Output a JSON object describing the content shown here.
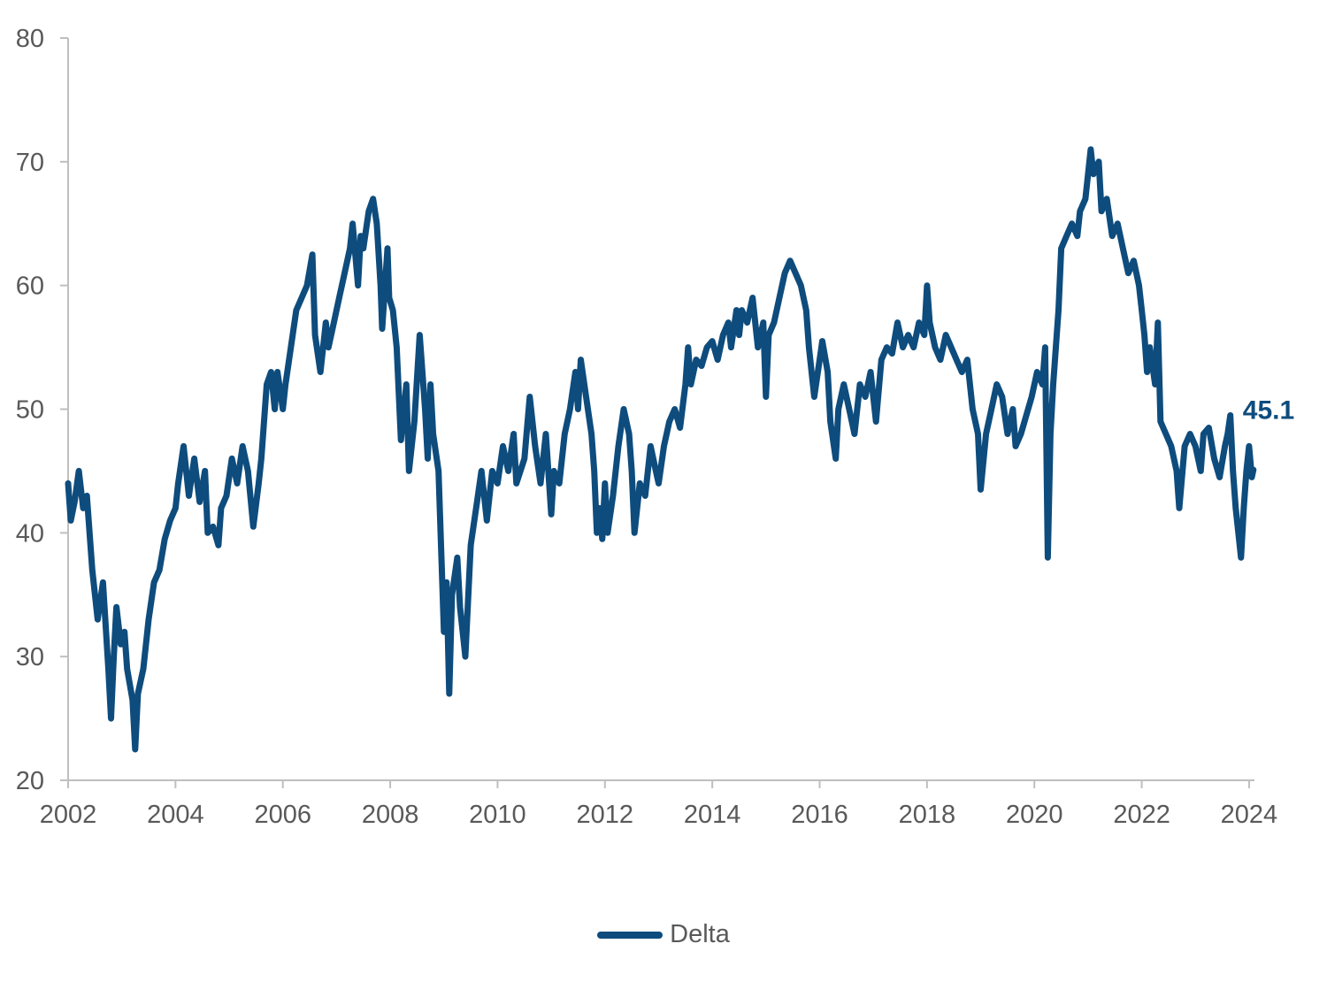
{
  "chart_data": {
    "type": "line",
    "title": "",
    "xlabel": "",
    "ylabel": "",
    "xlim": [
      2002,
      2024.1
    ],
    "ylim": [
      20,
      80
    ],
    "yticks": [
      "20",
      "30",
      "40",
      "50",
      "60",
      "70",
      "80"
    ],
    "xticks": [
      "2002",
      "2004",
      "2006",
      "2008",
      "2010",
      "2012",
      "2014",
      "2016",
      "2018",
      "2020",
      "2022",
      "2024"
    ],
    "grid": false,
    "legend_position": "bottom",
    "end_label": "45.1",
    "series": [
      {
        "name": "Delta",
        "color": "#0e4c7d",
        "points": [
          [
            2002.0,
            44
          ],
          [
            2002.05,
            41
          ],
          [
            2002.12,
            42.5
          ],
          [
            2002.2,
            45
          ],
          [
            2002.28,
            42
          ],
          [
            2002.35,
            43
          ],
          [
            2002.45,
            37
          ],
          [
            2002.55,
            33
          ],
          [
            2002.65,
            36
          ],
          [
            2002.75,
            29
          ],
          [
            2002.8,
            25
          ],
          [
            2002.85,
            30
          ],
          [
            2002.9,
            34
          ],
          [
            2002.98,
            31
          ],
          [
            2003.05,
            32
          ],
          [
            2003.1,
            29
          ],
          [
            2003.2,
            26.5
          ],
          [
            2003.25,
            22.5
          ],
          [
            2003.3,
            27
          ],
          [
            2003.4,
            29
          ],
          [
            2003.5,
            33
          ],
          [
            2003.6,
            36
          ],
          [
            2003.7,
            37
          ],
          [
            2003.8,
            39.5
          ],
          [
            2003.9,
            41
          ],
          [
            2004.0,
            42
          ],
          [
            2004.05,
            44
          ],
          [
            2004.15,
            47
          ],
          [
            2004.25,
            43
          ],
          [
            2004.35,
            46
          ],
          [
            2004.45,
            42.5
          ],
          [
            2004.55,
            45
          ],
          [
            2004.6,
            40
          ],
          [
            2004.7,
            40.5
          ],
          [
            2004.8,
            39
          ],
          [
            2004.85,
            42
          ],
          [
            2004.95,
            43
          ],
          [
            2005.05,
            46
          ],
          [
            2005.15,
            44
          ],
          [
            2005.25,
            47
          ],
          [
            2005.35,
            45
          ],
          [
            2005.45,
            40.5
          ],
          [
            2005.55,
            44
          ],
          [
            2005.6,
            46
          ],
          [
            2005.7,
            52
          ],
          [
            2005.78,
            53
          ],
          [
            2005.85,
            50
          ],
          [
            2005.9,
            53
          ],
          [
            2006.0,
            50
          ],
          [
            2006.05,
            52
          ],
          [
            2006.15,
            55
          ],
          [
            2006.25,
            58
          ],
          [
            2006.35,
            59
          ],
          [
            2006.45,
            60
          ],
          [
            2006.55,
            62.5
          ],
          [
            2006.6,
            56
          ],
          [
            2006.7,
            53
          ],
          [
            2006.8,
            57
          ],
          [
            2006.85,
            55
          ],
          [
            2006.95,
            57
          ],
          [
            2007.05,
            59
          ],
          [
            2007.15,
            61
          ],
          [
            2007.25,
            63
          ],
          [
            2007.3,
            65
          ],
          [
            2007.4,
            60
          ],
          [
            2007.45,
            64
          ],
          [
            2007.5,
            63
          ],
          [
            2007.6,
            66
          ],
          [
            2007.68,
            67
          ],
          [
            2007.75,
            65
          ],
          [
            2007.82,
            60
          ],
          [
            2007.85,
            56.5
          ],
          [
            2007.95,
            63
          ],
          [
            2007.98,
            59
          ],
          [
            2008.05,
            58
          ],
          [
            2008.12,
            55
          ],
          [
            2008.2,
            47.5
          ],
          [
            2008.3,
            52
          ],
          [
            2008.35,
            45
          ],
          [
            2008.45,
            49
          ],
          [
            2008.55,
            56
          ],
          [
            2008.65,
            50
          ],
          [
            2008.7,
            46
          ],
          [
            2008.75,
            52
          ],
          [
            2008.8,
            48
          ],
          [
            2008.9,
            45
          ],
          [
            2009.0,
            32
          ],
          [
            2009.05,
            36
          ],
          [
            2009.1,
            27
          ],
          [
            2009.15,
            35
          ],
          [
            2009.25,
            38
          ],
          [
            2009.3,
            34
          ],
          [
            2009.4,
            30
          ],
          [
            2009.5,
            39
          ],
          [
            2009.6,
            42
          ],
          [
            2009.7,
            45
          ],
          [
            2009.8,
            41
          ],
          [
            2009.9,
            45
          ],
          [
            2010.0,
            44
          ],
          [
            2010.1,
            47
          ],
          [
            2010.2,
            45
          ],
          [
            2010.3,
            48
          ],
          [
            2010.35,
            44
          ],
          [
            2010.5,
            46
          ],
          [
            2010.6,
            51
          ],
          [
            2010.7,
            47
          ],
          [
            2010.8,
            44
          ],
          [
            2010.9,
            48
          ],
          [
            2011.0,
            41.5
          ],
          [
            2011.05,
            45
          ],
          [
            2011.15,
            44
          ],
          [
            2011.25,
            48
          ],
          [
            2011.35,
            50
          ],
          [
            2011.45,
            53
          ],
          [
            2011.5,
            50
          ],
          [
            2011.55,
            54
          ],
          [
            2011.65,
            51
          ],
          [
            2011.75,
            48
          ],
          [
            2011.8,
            45
          ],
          [
            2011.85,
            40
          ],
          [
            2011.9,
            42
          ],
          [
            2011.95,
            39.5
          ],
          [
            2012.0,
            44
          ],
          [
            2012.05,
            40
          ],
          [
            2012.15,
            43
          ],
          [
            2012.25,
            47
          ],
          [
            2012.35,
            50
          ],
          [
            2012.45,
            48
          ],
          [
            2012.5,
            45
          ],
          [
            2012.55,
            40
          ],
          [
            2012.65,
            44
          ],
          [
            2012.75,
            43
          ],
          [
            2012.85,
            47
          ],
          [
            2012.95,
            45
          ],
          [
            2013.0,
            44
          ],
          [
            2013.1,
            47
          ],
          [
            2013.2,
            49
          ],
          [
            2013.3,
            50
          ],
          [
            2013.4,
            48.5
          ],
          [
            2013.5,
            52
          ],
          [
            2013.55,
            55
          ],
          [
            2013.6,
            52
          ],
          [
            2013.7,
            54
          ],
          [
            2013.8,
            53.5
          ],
          [
            2013.9,
            55
          ],
          [
            2014.0,
            55.5
          ],
          [
            2014.1,
            54
          ],
          [
            2014.2,
            56
          ],
          [
            2014.3,
            57
          ],
          [
            2014.35,
            55
          ],
          [
            2014.45,
            58
          ],
          [
            2014.5,
            56
          ],
          [
            2014.55,
            58
          ],
          [
            2014.65,
            57
          ],
          [
            2014.75,
            59
          ],
          [
            2014.85,
            55
          ],
          [
            2014.95,
            57
          ],
          [
            2015.0,
            51
          ],
          [
            2015.05,
            56
          ],
          [
            2015.15,
            57
          ],
          [
            2015.25,
            59
          ],
          [
            2015.35,
            61
          ],
          [
            2015.45,
            62
          ],
          [
            2015.55,
            61
          ],
          [
            2015.65,
            60
          ],
          [
            2015.75,
            58
          ],
          [
            2015.8,
            55
          ],
          [
            2015.9,
            51
          ],
          [
            2016.0,
            54
          ],
          [
            2016.05,
            55.5
          ],
          [
            2016.15,
            53
          ],
          [
            2016.2,
            49
          ],
          [
            2016.3,
            46
          ],
          [
            2016.35,
            50
          ],
          [
            2016.45,
            52
          ],
          [
            2016.55,
            50
          ],
          [
            2016.65,
            48
          ],
          [
            2016.75,
            52
          ],
          [
            2016.85,
            51
          ],
          [
            2016.95,
            53
          ],
          [
            2017.05,
            49
          ],
          [
            2017.15,
            54
          ],
          [
            2017.25,
            55
          ],
          [
            2017.35,
            54.5
          ],
          [
            2017.45,
            57
          ],
          [
            2017.55,
            55
          ],
          [
            2017.65,
            56
          ],
          [
            2017.75,
            55
          ],
          [
            2017.85,
            57
          ],
          [
            2017.95,
            56
          ],
          [
            2018.0,
            60
          ],
          [
            2018.05,
            57
          ],
          [
            2018.15,
            55
          ],
          [
            2018.25,
            54
          ],
          [
            2018.35,
            56
          ],
          [
            2018.45,
            55
          ],
          [
            2018.55,
            54
          ],
          [
            2018.65,
            53
          ],
          [
            2018.75,
            54
          ],
          [
            2018.85,
            50
          ],
          [
            2018.95,
            48
          ],
          [
            2019.0,
            43.5
          ],
          [
            2019.1,
            48
          ],
          [
            2019.2,
            50
          ],
          [
            2019.3,
            52
          ],
          [
            2019.4,
            51
          ],
          [
            2019.5,
            48
          ],
          [
            2019.6,
            50
          ],
          [
            2019.65,
            47
          ],
          [
            2019.75,
            48
          ],
          [
            2019.85,
            49.5
          ],
          [
            2019.95,
            51
          ],
          [
            2020.05,
            53
          ],
          [
            2020.15,
            52
          ],
          [
            2020.2,
            55
          ],
          [
            2020.25,
            38
          ],
          [
            2020.3,
            48
          ],
          [
            2020.35,
            52
          ],
          [
            2020.45,
            58
          ],
          [
            2020.5,
            63
          ],
          [
            2020.6,
            64
          ],
          [
            2020.7,
            65
          ],
          [
            2020.8,
            64
          ],
          [
            2020.85,
            66
          ],
          [
            2020.95,
            67
          ],
          [
            2021.05,
            71
          ],
          [
            2021.1,
            69
          ],
          [
            2021.2,
            70
          ],
          [
            2021.25,
            66
          ],
          [
            2021.35,
            67
          ],
          [
            2021.45,
            64
          ],
          [
            2021.55,
            65
          ],
          [
            2021.65,
            63
          ],
          [
            2021.75,
            61
          ],
          [
            2021.85,
            62
          ],
          [
            2021.95,
            60
          ],
          [
            2022.0,
            58
          ],
          [
            2022.05,
            56
          ],
          [
            2022.1,
            53
          ],
          [
            2022.15,
            55
          ],
          [
            2022.25,
            52
          ],
          [
            2022.3,
            57
          ],
          [
            2022.35,
            49
          ],
          [
            2022.45,
            48
          ],
          [
            2022.55,
            47
          ],
          [
            2022.65,
            45
          ],
          [
            2022.7,
            42
          ],
          [
            2022.8,
            47
          ],
          [
            2022.9,
            48
          ],
          [
            2023.0,
            47
          ],
          [
            2023.1,
            45
          ],
          [
            2023.15,
            48
          ],
          [
            2023.25,
            48.5
          ],
          [
            2023.35,
            46
          ],
          [
            2023.45,
            44.5
          ],
          [
            2023.55,
            47
          ],
          [
            2023.6,
            48
          ],
          [
            2023.65,
            49.5
          ],
          [
            2023.7,
            45
          ],
          [
            2023.75,
            42
          ],
          [
            2023.8,
            40
          ],
          [
            2023.85,
            38
          ],
          [
            2023.9,
            42
          ],
          [
            2023.95,
            45
          ],
          [
            2024.0,
            47
          ],
          [
            2024.05,
            44.5
          ],
          [
            2024.08,
            45.1
          ]
        ]
      }
    ]
  }
}
